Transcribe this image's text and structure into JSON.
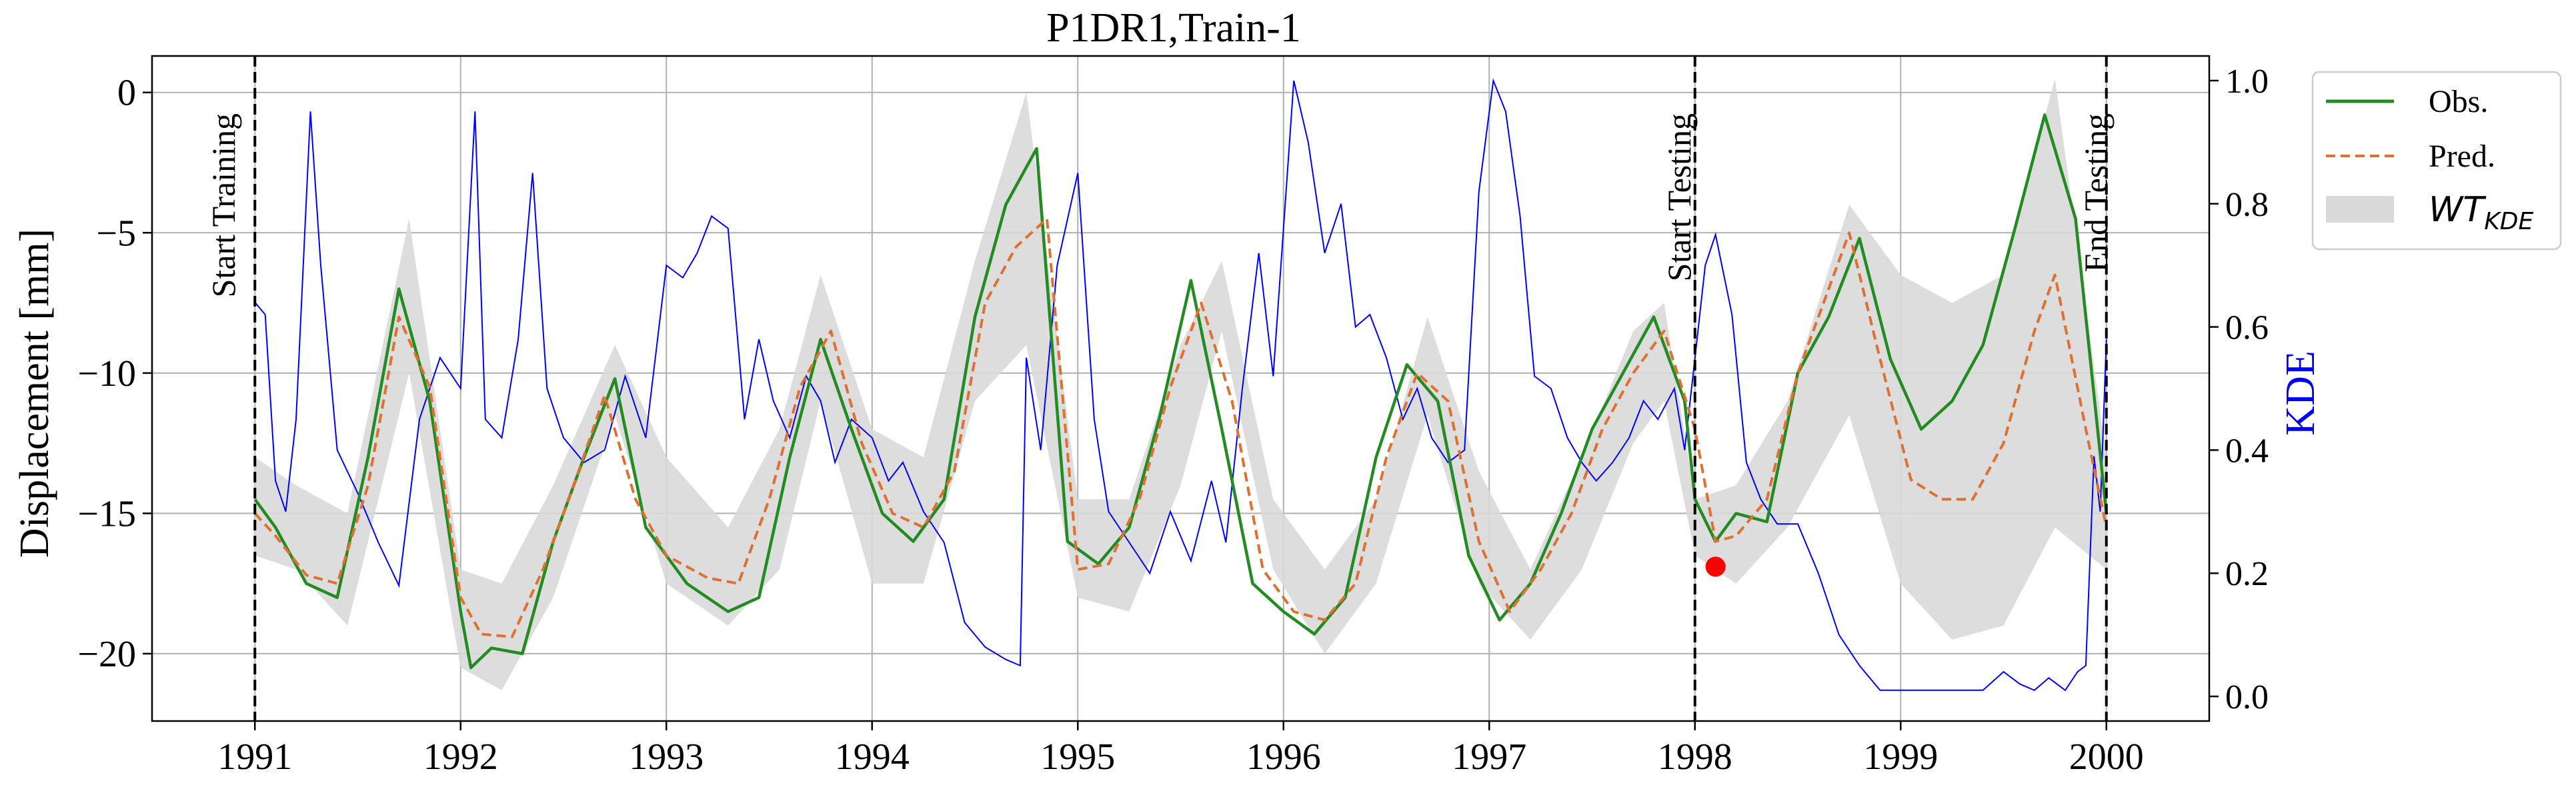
{
  "chart_data": {
    "type": "line",
    "title": "P1DR1,Train-1",
    "ylabel": "Displacement [mm]",
    "y2label": "KDE",
    "xlim": [
      1990.5,
      2000.5
    ],
    "ylim": [
      -22.4,
      1.3
    ],
    "y2lim": [
      -0.04,
      1.04
    ],
    "x_ticks": [
      "1991",
      "1992",
      "1993",
      "1994",
      "1995",
      "1996",
      "1997",
      "1998",
      "1999",
      "2000"
    ],
    "y_ticks": [
      "0",
      "−5",
      "−10",
      "−15",
      "−20"
    ],
    "y2_ticks": [
      "0.0",
      "0.2",
      "0.4",
      "0.6",
      "0.8",
      "1.0"
    ],
    "grid": true,
    "legend": {
      "placement": "outside-top-right",
      "entries": [
        {
          "label": "Obs.",
          "color": "#228B22",
          "style": "solid"
        },
        {
          "label": "Pred.",
          "color": "#E07030",
          "style": "dashed"
        },
        {
          "label_main": "WT",
          "label_sub": "KDE",
          "color": "#d9d9d9",
          "style": "band"
        }
      ]
    },
    "annotations": [
      {
        "text": "Start Training",
        "x": 1991.0
      },
      {
        "text": "Start Testing",
        "x": 1998.0
      },
      {
        "text": "End Testing",
        "x": 2000.0
      }
    ],
    "highlight_point": {
      "x": 1998.1,
      "y": -16.9,
      "color": "#ff0000"
    },
    "colors": {
      "obs": "#228B22",
      "pred": "#E07030",
      "kde": "#0000ff",
      "band": "#d9d9d9",
      "grid": "#b0b0b0",
      "axis": "#000000"
    },
    "series": [
      {
        "name": "Obs.",
        "x": [
          1991.0,
          1991.1,
          1991.25,
          1991.4,
          1991.55,
          1991.7,
          1991.85,
          1992.0,
          1992.05,
          1992.15,
          1992.3,
          1992.45,
          1992.6,
          1992.75,
          1992.9,
          1993.1,
          1993.3,
          1993.45,
          1993.6,
          1993.75,
          1993.9,
          1994.05,
          1994.2,
          1994.35,
          1994.5,
          1994.65,
          1994.8,
          1994.95,
          1995.1,
          1995.25,
          1995.4,
          1995.55,
          1995.7,
          1995.85,
          1996.0,
          1996.15,
          1996.3,
          1996.45,
          1996.6,
          1996.75,
          1996.9,
          1997.05,
          1997.2,
          1997.35,
          1997.5,
          1997.65,
          1997.8,
          1997.95,
          1998.0,
          1998.1,
          1998.2,
          1998.35,
          1998.5,
          1998.65,
          1998.8,
          1998.95,
          1999.1,
          1999.25,
          1999.4,
          1999.55,
          1999.7,
          1999.85,
          2000.0
        ],
        "values": [
          -14.5,
          -15.5,
          -17.5,
          -18.0,
          -13.0,
          -7.0,
          -11.0,
          -18.5,
          -20.5,
          -19.8,
          -20.0,
          -16.0,
          -13.0,
          -10.2,
          -15.5,
          -17.5,
          -18.5,
          -18.0,
          -13.0,
          -8.8,
          -12.0,
          -15.0,
          -16.0,
          -14.5,
          -8.0,
          -4.0,
          -2.0,
          -16.0,
          -16.8,
          -15.5,
          -11.5,
          -6.7,
          -12.0,
          -17.5,
          -18.5,
          -19.3,
          -18.0,
          -13.0,
          -9.7,
          -11.0,
          -16.5,
          -18.8,
          -17.5,
          -15.0,
          -12.0,
          -10.0,
          -8.0,
          -11.0,
          -14.5,
          -16.0,
          -15.0,
          -15.3,
          -10.0,
          -8.0,
          -5.2,
          -9.5,
          -12.0,
          -11.0,
          -9.0,
          -5.0,
          -0.8,
          -4.5,
          -15.0
        ]
      },
      {
        "name": "Pred.",
        "x": [
          1991.0,
          1991.1,
          1991.25,
          1991.4,
          1991.55,
          1991.7,
          1991.85,
          1992.0,
          1992.1,
          1992.25,
          1992.4,
          1992.55,
          1992.7,
          1992.85,
          1993.0,
          1993.2,
          1993.35,
          1993.5,
          1993.65,
          1993.8,
          1993.95,
          1994.1,
          1994.25,
          1994.4,
          1994.55,
          1994.7,
          1994.85,
          1995.0,
          1995.15,
          1995.3,
          1995.45,
          1995.6,
          1995.75,
          1995.9,
          1996.05,
          1996.2,
          1996.35,
          1996.5,
          1996.65,
          1996.8,
          1996.95,
          1997.1,
          1997.25,
          1997.4,
          1997.55,
          1997.7,
          1997.85,
          1998.0,
          1998.1,
          1998.2,
          1998.35,
          1998.5,
          1998.65,
          1998.75,
          1998.9,
          1999.05,
          1999.2,
          1999.35,
          1999.5,
          1999.65,
          1999.75,
          1999.9,
          2000.0
        ],
        "values": [
          -15.0,
          -15.8,
          -17.2,
          -17.5,
          -14.0,
          -8.0,
          -10.5,
          -18.0,
          -19.3,
          -19.4,
          -17.0,
          -14.0,
          -10.8,
          -14.5,
          -16.5,
          -17.3,
          -17.5,
          -14.5,
          -10.5,
          -8.5,
          -12.5,
          -15.0,
          -15.5,
          -13.5,
          -7.5,
          -5.5,
          -4.5,
          -17.0,
          -16.8,
          -14.5,
          -10.5,
          -7.5,
          -11.0,
          -17.0,
          -18.5,
          -18.8,
          -17.5,
          -13.0,
          -10.0,
          -11.0,
          -16.0,
          -18.5,
          -17.0,
          -15.0,
          -12.0,
          -10.0,
          -8.5,
          -12.0,
          -16.0,
          -15.8,
          -14.5,
          -10.0,
          -7.0,
          -5.0,
          -9.5,
          -13.8,
          -14.5,
          -14.5,
          -12.5,
          -8.5,
          -6.5,
          -12.0,
          -15.5
        ]
      },
      {
        "name": "WT_KDE upper",
        "x": [
          1991.0,
          1991.2,
          1991.45,
          1991.75,
          1992.0,
          1992.2,
          1992.45,
          1992.75,
          1993.0,
          1993.3,
          1993.55,
          1993.75,
          1994.0,
          1994.25,
          1994.5,
          1994.75,
          1995.0,
          1995.25,
          1995.5,
          1995.7,
          1995.95,
          1996.2,
          1996.45,
          1996.7,
          1996.95,
          1997.2,
          1997.45,
          1997.7,
          1997.85,
          1998.0,
          1998.2,
          1998.45,
          1998.75,
          1999.0,
          1999.25,
          1999.5,
          1999.75,
          2000.0
        ],
        "values": [
          -13.0,
          -14.0,
          -15.0,
          -4.5,
          -17.0,
          -17.5,
          -14.0,
          -9.0,
          -13.0,
          -15.5,
          -12.0,
          -6.5,
          -12.0,
          -13.0,
          -6.0,
          0.0,
          -14.5,
          -14.5,
          -9.0,
          -6.0,
          -14.5,
          -17.0,
          -14.5,
          -8.0,
          -13.5,
          -17.0,
          -13.0,
          -8.5,
          -7.5,
          -14.5,
          -14.0,
          -11.0,
          -4.0,
          -6.5,
          -7.5,
          -6.5,
          0.5,
          -13.0
        ]
      },
      {
        "name": "WT_KDE lower",
        "x": [
          1991.0,
          1991.2,
          1991.45,
          1991.75,
          1992.0,
          1992.2,
          1992.45,
          1992.75,
          1993.0,
          1993.3,
          1993.55,
          1993.75,
          1994.0,
          1994.25,
          1994.5,
          1994.75,
          1995.0,
          1995.25,
          1995.5,
          1995.7,
          1995.95,
          1996.2,
          1996.45,
          1996.7,
          1996.95,
          1997.2,
          1997.45,
          1997.7,
          1997.85,
          1998.0,
          1998.2,
          1998.45,
          1998.75,
          1999.0,
          1999.25,
          1999.5,
          1999.75,
          2000.0
        ],
        "values": [
          -16.5,
          -17.0,
          -19.0,
          -10.0,
          -20.5,
          -21.3,
          -18.0,
          -11.5,
          -17.5,
          -19.0,
          -17.0,
          -11.0,
          -17.5,
          -17.5,
          -11.0,
          -9.0,
          -18.0,
          -18.5,
          -14.0,
          -8.5,
          -17.0,
          -20.0,
          -17.5,
          -11.5,
          -17.5,
          -19.5,
          -17.0,
          -12.5,
          -11.0,
          -16.5,
          -17.5,
          -15.5,
          -11.5,
          -17.5,
          -19.5,
          -19.0,
          -15.5,
          -17.0
        ]
      },
      {
        "name": "KDE",
        "axis": "right",
        "x": [
          1991.0,
          1991.05,
          1991.1,
          1991.15,
          1991.2,
          1991.27,
          1991.32,
          1991.4,
          1991.5,
          1991.6,
          1991.7,
          1991.8,
          1991.9,
          1992.0,
          1992.07,
          1992.12,
          1992.2,
          1992.28,
          1992.35,
          1992.42,
          1992.5,
          1992.6,
          1992.7,
          1992.8,
          1992.9,
          1993.0,
          1993.08,
          1993.15,
          1993.22,
          1993.3,
          1993.38,
          1993.45,
          1993.52,
          1993.6,
          1993.68,
          1993.75,
          1993.82,
          1993.9,
          1994.0,
          1994.08,
          1994.15,
          1994.25,
          1994.35,
          1994.45,
          1994.55,
          1994.65,
          1994.72,
          1994.75,
          1994.82,
          1994.9,
          1995.0,
          1995.08,
          1995.15,
          1995.25,
          1995.35,
          1995.45,
          1995.55,
          1995.65,
          1995.72,
          1995.8,
          1995.88,
          1995.95,
          1996.05,
          1996.12,
          1996.2,
          1996.28,
          1996.35,
          1996.42,
          1996.5,
          1996.58,
          1996.65,
          1996.72,
          1996.8,
          1996.88,
          1996.95,
          1997.02,
          1997.08,
          1997.15,
          1997.22,
          1997.3,
          1997.38,
          1997.45,
          1997.52,
          1997.6,
          1997.68,
          1997.75,
          1997.82,
          1997.9,
          1997.95,
          1998.0,
          1998.05,
          1998.1,
          1998.18,
          1998.25,
          1998.32,
          1998.4,
          1998.5,
          1998.6,
          1998.7,
          1998.8,
          1998.9,
          1999.0,
          1999.1,
          1999.2,
          1999.3,
          1999.4,
          1999.5,
          1999.58,
          1999.65,
          1999.72,
          1999.8,
          1999.86,
          1999.9,
          1999.94,
          1999.97,
          2000.0
        ],
        "values": [
          0.64,
          0.62,
          0.35,
          0.3,
          0.45,
          0.95,
          0.7,
          0.4,
          0.33,
          0.25,
          0.18,
          0.45,
          0.55,
          0.5,
          0.95,
          0.45,
          0.42,
          0.58,
          0.85,
          0.5,
          0.42,
          0.38,
          0.4,
          0.52,
          0.42,
          0.7,
          0.68,
          0.72,
          0.78,
          0.76,
          0.45,
          0.58,
          0.48,
          0.42,
          0.52,
          0.48,
          0.38,
          0.45,
          0.42,
          0.35,
          0.38,
          0.3,
          0.25,
          0.12,
          0.08,
          0.06,
          0.05,
          0.55,
          0.4,
          0.7,
          0.85,
          0.45,
          0.3,
          0.25,
          0.2,
          0.3,
          0.22,
          0.35,
          0.25,
          0.5,
          0.72,
          0.52,
          1.0,
          0.9,
          0.72,
          0.8,
          0.6,
          0.62,
          0.55,
          0.45,
          0.5,
          0.42,
          0.38,
          0.4,
          0.82,
          1.0,
          0.95,
          0.78,
          0.52,
          0.5,
          0.42,
          0.38,
          0.35,
          0.38,
          0.42,
          0.48,
          0.45,
          0.5,
          0.4,
          0.55,
          0.7,
          0.75,
          0.62,
          0.38,
          0.32,
          0.28,
          0.28,
          0.2,
          0.1,
          0.05,
          0.01,
          0.01,
          0.01,
          0.01,
          0.01,
          0.01,
          0.04,
          0.02,
          0.01,
          0.03,
          0.01,
          0.04,
          0.05,
          0.39,
          0.3,
          0.58
        ]
      }
    ]
  }
}
